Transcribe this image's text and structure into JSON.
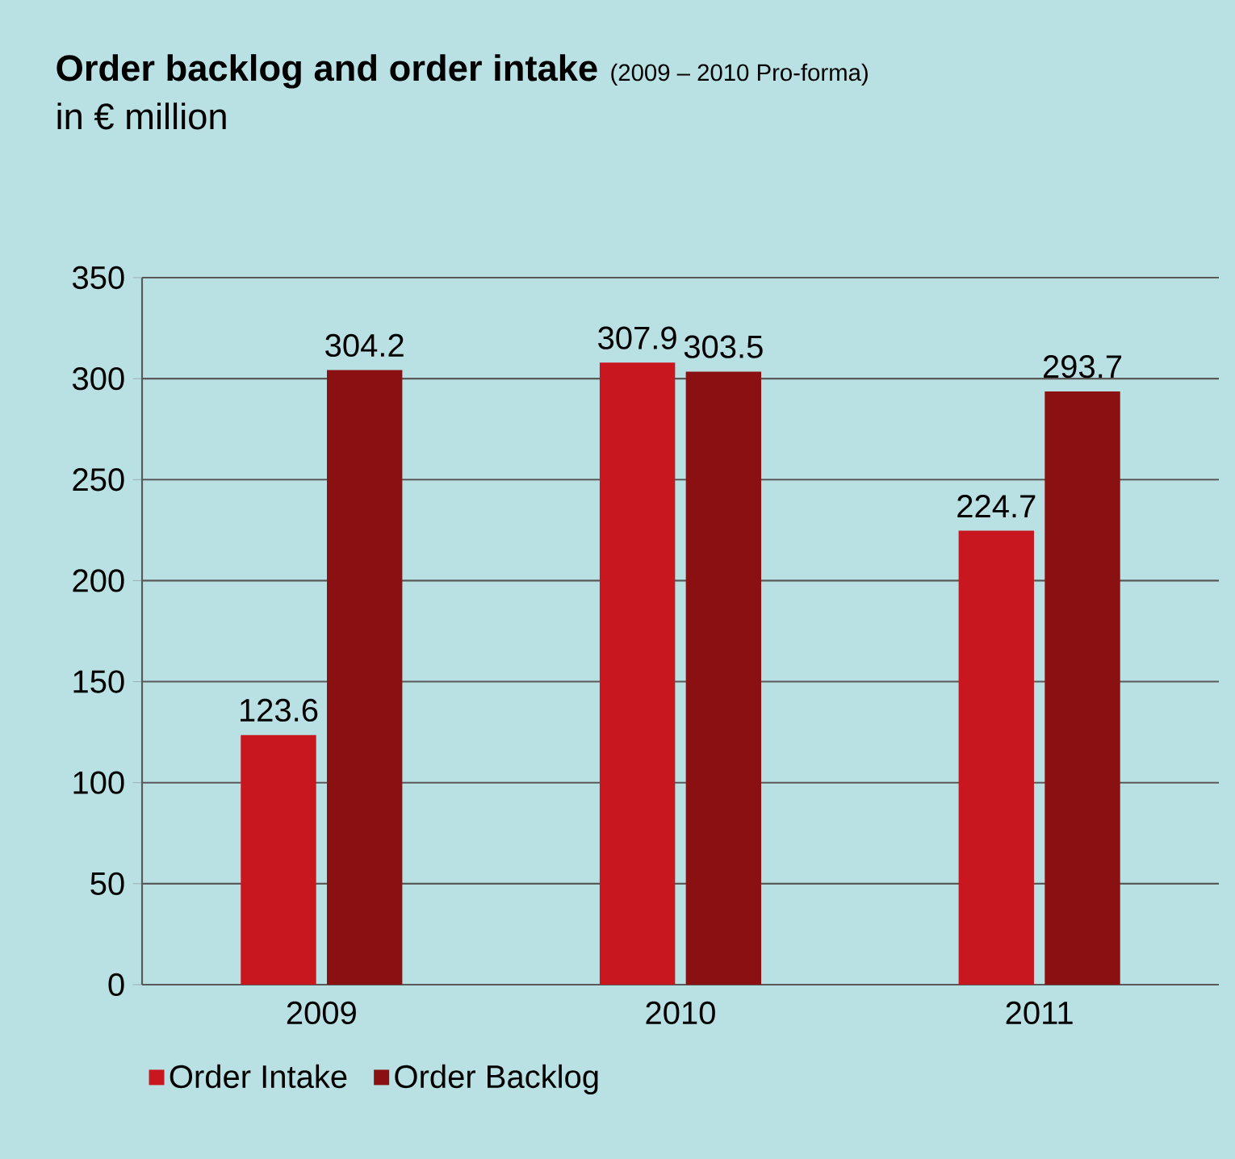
{
  "chart_data": {
    "type": "bar",
    "title": "Order backlog and order intake",
    "subtitle": "(2009 – 2010 Pro-forma)",
    "ylabel": "in € million",
    "categories": [
      "2009",
      "2010",
      "2011"
    ],
    "series": [
      {
        "name": "Order Intake",
        "color": "#c8171f",
        "values": [
          123.6,
          307.9,
          224.7
        ]
      },
      {
        "name": "Order Backlog",
        "color": "#8a1012",
        "values": [
          304.2,
          303.5,
          293.7
        ]
      }
    ],
    "ylim": [
      0,
      350
    ],
    "yticks": [
      0,
      50,
      100,
      150,
      200,
      250,
      300,
      350
    ],
    "grid": "y",
    "legend": "bottom",
    "data_labels": true
  }
}
